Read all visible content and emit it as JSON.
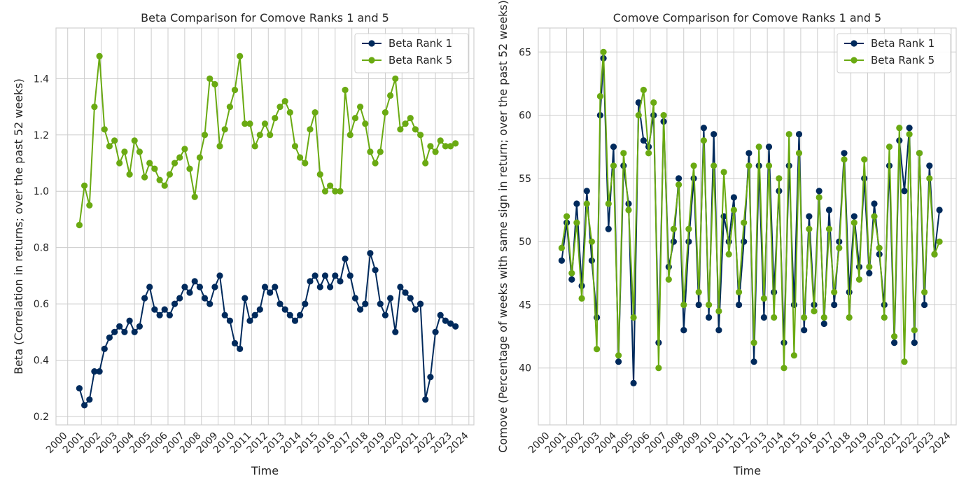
{
  "chart_data": [
    {
      "type": "line",
      "title": "Beta Comparison for Comove Ranks 1 and 5",
      "xlabel": "Time",
      "ylabel": "Beta (Correlation in returns; over the past 52 weeks)",
      "xlim": [
        1999.3,
        2024.3
      ],
      "ylim": [
        0.17,
        1.58
      ],
      "xticks": [
        2000,
        2001,
        2002,
        2003,
        2004,
        2005,
        2006,
        2007,
        2008,
        2009,
        2010,
        2011,
        2012,
        2013,
        2014,
        2015,
        2016,
        2017,
        2018,
        2019,
        2020,
        2021,
        2022,
        2023,
        2024
      ],
      "yticks": [
        0.2,
        0.4,
        0.6,
        0.8,
        1.0,
        1.2,
        1.4
      ],
      "ytick_labels": [
        "0.2",
        "0.4",
        "0.6",
        "0.8",
        "1.0",
        "1.2",
        "1.4"
      ],
      "grid": true,
      "legend": "top-right",
      "x": [
        2000.7,
        2001.0,
        2001.3,
        2001.6,
        2001.9,
        2002.2,
        2002.5,
        2002.8,
        2003.1,
        2003.4,
        2003.7,
        2004.0,
        2004.3,
        2004.6,
        2004.9,
        2005.2,
        2005.5,
        2005.8,
        2006.1,
        2006.4,
        2006.7,
        2007.0,
        2007.3,
        2007.6,
        2007.9,
        2008.2,
        2008.5,
        2008.8,
        2009.1,
        2009.4,
        2009.7,
        2010.0,
        2010.3,
        2010.6,
        2010.9,
        2011.2,
        2011.5,
        2011.8,
        2012.1,
        2012.4,
        2012.7,
        2013.0,
        2013.3,
        2013.6,
        2013.9,
        2014.2,
        2014.5,
        2014.8,
        2015.1,
        2015.4,
        2015.7,
        2016.0,
        2016.3,
        2016.6,
        2016.9,
        2017.2,
        2017.5,
        2017.8,
        2018.1,
        2018.4,
        2018.7,
        2019.0,
        2019.3,
        2019.6,
        2019.9,
        2020.2,
        2020.5,
        2020.8,
        2021.1,
        2021.4,
        2021.7,
        2022.0,
        2022.3,
        2022.6,
        2022.9,
        2023.2
      ],
      "series": [
        {
          "name": "Beta Rank 1",
          "color": "#002a5c",
          "values": [
            0.3,
            0.24,
            0.26,
            0.36,
            0.36,
            0.44,
            0.48,
            0.5,
            0.52,
            0.5,
            0.54,
            0.5,
            0.52,
            0.62,
            0.66,
            0.58,
            0.56,
            0.58,
            0.56,
            0.6,
            0.62,
            0.66,
            0.64,
            0.68,
            0.66,
            0.62,
            0.6,
            0.66,
            0.7,
            0.56,
            0.54,
            0.46,
            0.44,
            0.62,
            0.54,
            0.56,
            0.58,
            0.66,
            0.64,
            0.66,
            0.6,
            0.58,
            0.56,
            0.54,
            0.56,
            0.6,
            0.68,
            0.7,
            0.66,
            0.7,
            0.66,
            0.7,
            0.68,
            0.76,
            0.7,
            0.62,
            0.58,
            0.6,
            0.78,
            0.72,
            0.6,
            0.56,
            0.62,
            0.5,
            0.66,
            0.64,
            0.62,
            0.58,
            0.6,
            0.26,
            0.34,
            0.5,
            0.56,
            0.54,
            0.53,
            0.52
          ]
        },
        {
          "name": "Beta Rank 5",
          "color": "#6aaa12",
          "values": [
            0.88,
            1.02,
            0.95,
            1.3,
            1.48,
            1.22,
            1.16,
            1.18,
            1.1,
            1.14,
            1.06,
            1.18,
            1.14,
            1.05,
            1.1,
            1.08,
            1.04,
            1.02,
            1.06,
            1.1,
            1.12,
            1.15,
            1.08,
            0.98,
            1.12,
            1.2,
            1.4,
            1.38,
            1.16,
            1.22,
            1.3,
            1.36,
            1.48,
            1.24,
            1.24,
            1.16,
            1.2,
            1.24,
            1.2,
            1.26,
            1.3,
            1.32,
            1.28,
            1.16,
            1.12,
            1.1,
            1.22,
            1.28,
            1.06,
            1.0,
            1.02,
            1.0,
            1.0,
            1.36,
            1.2,
            1.26,
            1.3,
            1.24,
            1.14,
            1.1,
            1.14,
            1.28,
            1.34,
            1.4,
            1.22,
            1.24,
            1.26,
            1.22,
            1.2,
            1.1,
            1.16,
            1.14,
            1.18,
            1.16,
            1.16,
            1.17
          ]
        }
      ]
    },
    {
      "type": "line",
      "title": "Comove Comparison for Comove Ranks 1 and 5",
      "xlabel": "Time",
      "ylabel": "Comove (Percentage of weeks with same sign in return; over the past 52 weeks)",
      "xlim": [
        1999.3,
        2024.3
      ],
      "ylim": [
        35.5,
        66.9
      ],
      "xticks": [
        2000,
        2001,
        2002,
        2003,
        2004,
        2005,
        2006,
        2007,
        2008,
        2009,
        2010,
        2011,
        2012,
        2013,
        2014,
        2015,
        2016,
        2017,
        2018,
        2019,
        2020,
        2021,
        2022,
        2023,
        2024
      ],
      "yticks": [
        40,
        45,
        50,
        55,
        60,
        65
      ],
      "grid": true,
      "legend": "top-right",
      "x": [
        2000.7,
        2001.0,
        2001.3,
        2001.6,
        2001.9,
        2002.2,
        2002.5,
        2002.8,
        2003.0,
        2003.2,
        2003.5,
        2003.8,
        2004.1,
        2004.4,
        2004.7,
        2005.0,
        2005.3,
        2005.6,
        2005.9,
        2006.2,
        2006.5,
        2006.8,
        2007.1,
        2007.4,
        2007.7,
        2008.0,
        2008.3,
        2008.6,
        2008.9,
        2009.2,
        2009.5,
        2009.8,
        2010.1,
        2010.4,
        2010.7,
        2011.0,
        2011.3,
        2011.6,
        2011.9,
        2012.2,
        2012.5,
        2012.8,
        2013.1,
        2013.4,
        2013.7,
        2014.0,
        2014.3,
        2014.6,
        2014.9,
        2015.2,
        2015.5,
        2015.8,
        2016.1,
        2016.4,
        2016.7,
        2017.0,
        2017.3,
        2017.6,
        2017.9,
        2018.2,
        2018.5,
        2018.8,
        2019.1,
        2019.4,
        2019.7,
        2020.0,
        2020.3,
        2020.6,
        2020.9,
        2021.2,
        2021.5,
        2021.8,
        2022.1,
        2022.4,
        2022.7,
        2023.0,
        2023.3
      ],
      "series": [
        {
          "name": "Beta Rank 1",
          "color": "#002a5c",
          "values": [
            48.5,
            51.5,
            47.0,
            53.0,
            46.5,
            54.0,
            48.5,
            44.0,
            60.0,
            64.5,
            51.0,
            57.5,
            40.5,
            56.0,
            53.0,
            38.8,
            61.0,
            58.0,
            57.5,
            60.0,
            42.0,
            59.5,
            48.0,
            50.0,
            55.0,
            43.0,
            50.0,
            55.0,
            45.0,
            59.0,
            44.0,
            58.5,
            43.0,
            52.0,
            50.0,
            53.5,
            45.0,
            50.0,
            57.0,
            40.5,
            56.0,
            44.0,
            57.5,
            46.0,
            54.0,
            42.0,
            56.0,
            45.0,
            58.5,
            43.0,
            52.0,
            45.0,
            54.0,
            43.5,
            52.5,
            45.0,
            50.0,
            57.0,
            46.0,
            52.0,
            48.0,
            55.0,
            47.5,
            53.0,
            49.0,
            45.0,
            56.0,
            42.0,
            58.0,
            54.0,
            59.0,
            42.0,
            57.0,
            45.0,
            56.0,
            49.0,
            52.5
          ]
        },
        {
          "name": "Beta Rank 5",
          "color": "#6aaa12",
          "values": [
            49.5,
            52.0,
            47.5,
            51.5,
            45.5,
            53.0,
            50.0,
            41.5,
            61.5,
            65.0,
            53.0,
            56.0,
            41.0,
            57.0,
            52.5,
            44.0,
            60.0,
            62.0,
            57.0,
            61.0,
            40.0,
            60.0,
            47.0,
            51.0,
            54.5,
            45.0,
            51.0,
            56.0,
            46.0,
            58.0,
            45.0,
            56.0,
            44.5,
            55.5,
            49.0,
            52.5,
            46.0,
            51.5,
            56.0,
            42.0,
            57.5,
            45.5,
            56.0,
            44.0,
            55.0,
            40.0,
            58.5,
            41.0,
            57.0,
            44.0,
            51.0,
            44.5,
            53.5,
            44.0,
            51.0,
            46.0,
            49.5,
            56.5,
            44.0,
            51.5,
            47.0,
            56.5,
            48.0,
            52.0,
            49.5,
            44.0,
            57.5,
            42.5,
            59.0,
            40.5,
            58.5,
            43.0,
            57.0,
            46.0,
            55.0,
            49.0,
            50.0
          ]
        }
      ]
    }
  ]
}
